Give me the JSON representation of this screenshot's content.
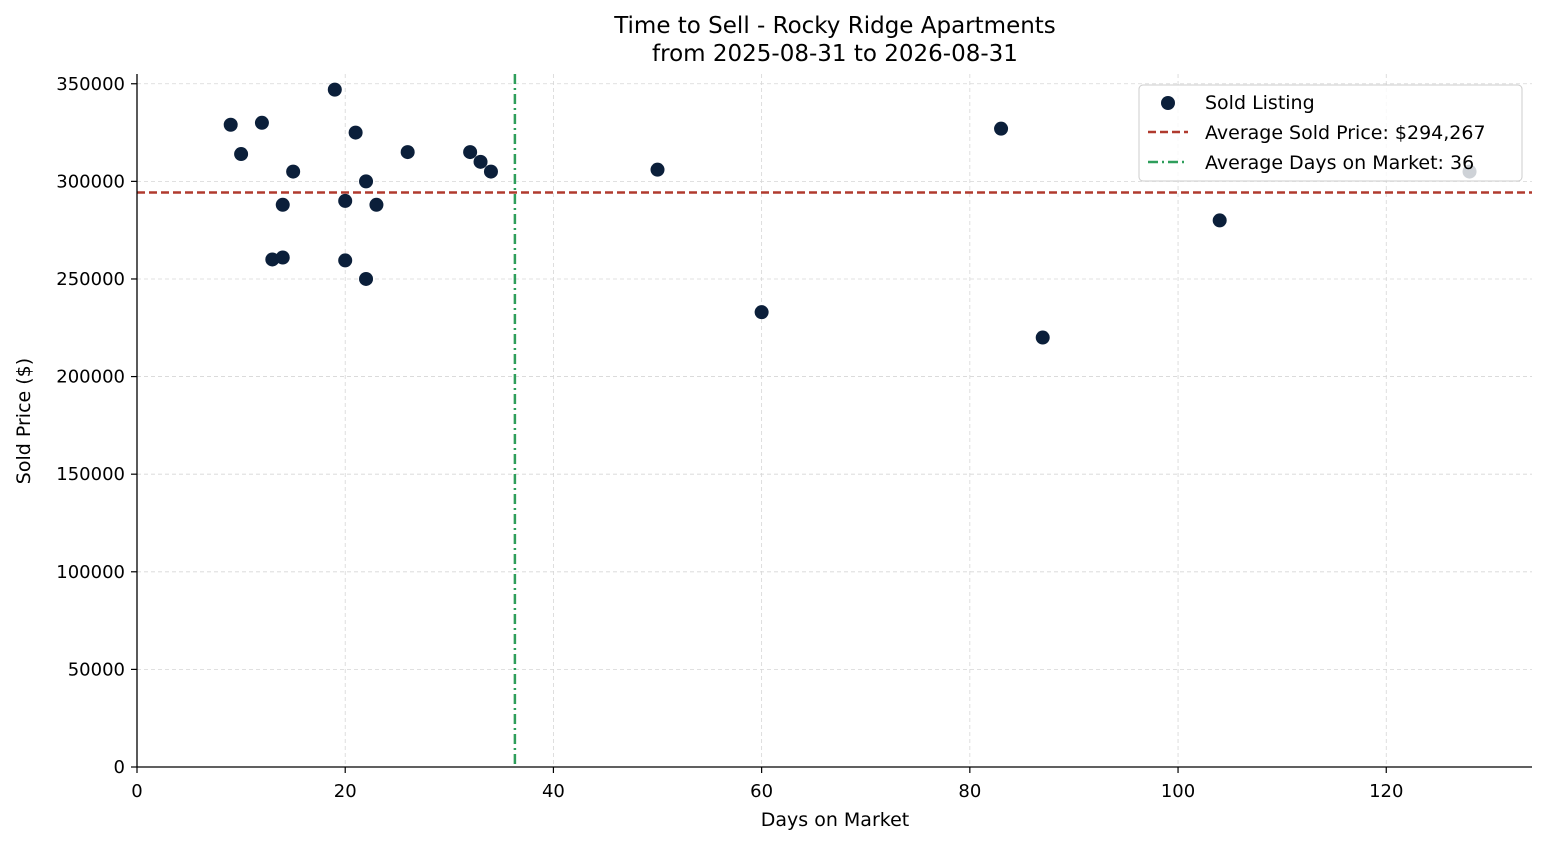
{
  "chart_data": {
    "type": "scatter",
    "title": "Time to Sell - Rocky Ridge Apartments",
    "subtitle": "from 2025-08-31 to 2026-08-31",
    "xlabel": "Days on Market",
    "ylabel": "Sold Price ($)",
    "xlim": [
      0,
      134
    ],
    "ylim": [
      0,
      355000
    ],
    "xticks": [
      0,
      20,
      40,
      60,
      80,
      100,
      120
    ],
    "yticks": [
      0,
      50000,
      100000,
      150000,
      200000,
      250000,
      300000,
      350000
    ],
    "grid": true,
    "legend_position": "top-right",
    "series": [
      {
        "name": "Sold Listing",
        "color": "#0b1f3a",
        "points": [
          {
            "x": 9,
            "y": 329000
          },
          {
            "x": 10,
            "y": 314000
          },
          {
            "x": 12,
            "y": 330000
          },
          {
            "x": 13,
            "y": 260000
          },
          {
            "x": 14,
            "y": 288000
          },
          {
            "x": 14,
            "y": 261000
          },
          {
            "x": 15,
            "y": 305000
          },
          {
            "x": 19,
            "y": 347000
          },
          {
            "x": 20,
            "y": 290000
          },
          {
            "x": 20,
            "y": 259500
          },
          {
            "x": 21,
            "y": 325000
          },
          {
            "x": 22,
            "y": 300000
          },
          {
            "x": 22,
            "y": 250000
          },
          {
            "x": 23,
            "y": 288000
          },
          {
            "x": 26,
            "y": 315000
          },
          {
            "x": 32,
            "y": 315000
          },
          {
            "x": 33,
            "y": 310000
          },
          {
            "x": 34,
            "y": 305000
          },
          {
            "x": 50,
            "y": 306000
          },
          {
            "x": 60,
            "y": 233000
          },
          {
            "x": 83,
            "y": 327000
          },
          {
            "x": 87,
            "y": 220000
          },
          {
            "x": 104,
            "y": 280000
          },
          {
            "x": 128,
            "y": 305000
          }
        ]
      }
    ],
    "reference_lines": [
      {
        "name": "Average Sold Price: $294,267",
        "orientation": "horizontal",
        "value": 294267,
        "color": "#b03a2e",
        "style": "dashed"
      },
      {
        "name": "Average Days on Market: 36",
        "orientation": "vertical",
        "value": 36.3,
        "color": "#2e9e5b",
        "style": "dashdot"
      }
    ]
  }
}
